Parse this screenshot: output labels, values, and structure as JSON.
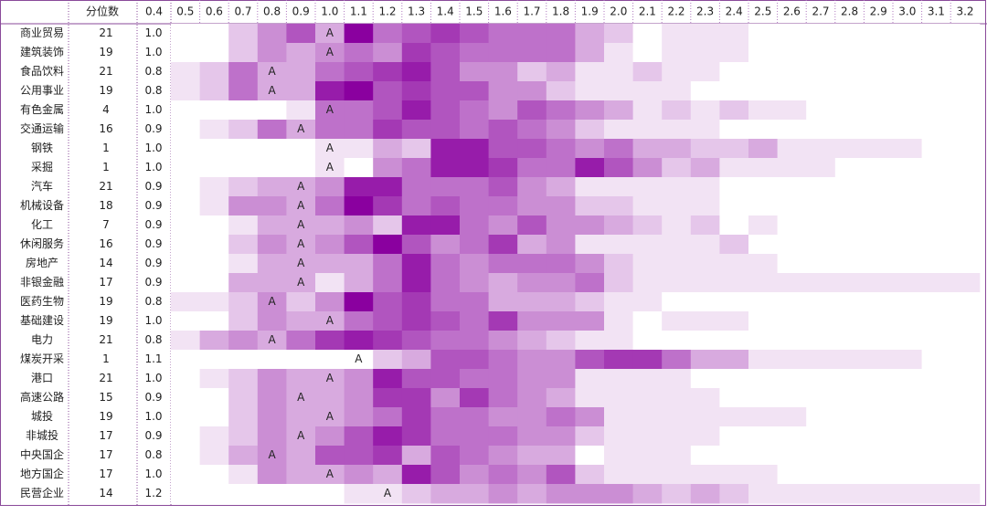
{
  "header": {
    "name": "",
    "count": "分位数",
    "columns": [
      "0.4",
      "0.5",
      "0.6",
      "0.7",
      "0.8",
      "0.9",
      "1.0",
      "1.1",
      "1.2",
      "1.3",
      "1.4",
      "1.5",
      "1.6",
      "1.7",
      "1.8",
      "1.9",
      "2.0",
      "2.1",
      "2.2",
      "2.3",
      "2.4",
      "2.5",
      "2.6",
      "2.7",
      "2.8",
      "2.9",
      "3.0",
      "3.1",
      "3.2"
    ]
  },
  "color_scale": {
    "range": [
      0,
      9
    ],
    "low": "#ffffff",
    "high": "#8a009f"
  },
  "marker": "A",
  "rows": [
    {
      "name": "商业贸易",
      "count": "21",
      "value": "1.0",
      "cells": [
        0,
        0,
        2,
        4,
        6,
        3,
        9,
        5,
        6,
        7,
        6,
        5,
        5,
        5,
        3,
        2,
        0,
        1,
        1,
        1,
        0,
        0,
        0,
        0,
        0,
        0,
        0,
        0
      ]
    },
    {
      "name": "建筑装饰",
      "count": "19",
      "value": "1.0",
      "cells": [
        0,
        0,
        2,
        4,
        3,
        4,
        5,
        4,
        7,
        6,
        5,
        5,
        5,
        5,
        3,
        1,
        0,
        1,
        1,
        1,
        0,
        0,
        0,
        0,
        0,
        0,
        0,
        0
      ]
    },
    {
      "name": "食品饮料",
      "count": "21",
      "value": "0.8",
      "cells": [
        1,
        2,
        5,
        3,
        3,
        5,
        6,
        7,
        8,
        6,
        4,
        4,
        2,
        3,
        1,
        1,
        2,
        1,
        1,
        0,
        0,
        0,
        0,
        0,
        0,
        0,
        0,
        0
      ]
    },
    {
      "name": "公用事业",
      "count": "19",
      "value": "0.8",
      "cells": [
        1,
        2,
        5,
        3,
        3,
        8,
        9,
        6,
        7,
        6,
        6,
        4,
        4,
        2,
        1,
        1,
        1,
        1,
        0,
        0,
        0,
        0,
        0,
        0,
        0,
        0,
        0,
        0
      ]
    },
    {
      "name": "有色金属",
      "count": "4",
      "value": "1.0",
      "cells": [
        0,
        0,
        0,
        0,
        1,
        5,
        5,
        6,
        8,
        6,
        5,
        4,
        6,
        5,
        4,
        3,
        1,
        2,
        1,
        2,
        1,
        1,
        0,
        0,
        0,
        0,
        0,
        0
      ]
    },
    {
      "name": "交通运输",
      "count": "16",
      "value": "0.9",
      "cells": [
        0,
        1,
        2,
        5,
        3,
        5,
        5,
        7,
        6,
        6,
        5,
        6,
        5,
        4,
        2,
        1,
        1,
        1,
        1,
        0,
        0,
        0,
        0,
        0,
        0,
        0,
        0,
        0
      ]
    },
    {
      "name": "钢铁",
      "count": "1",
      "value": "1.0",
      "cells": [
        0,
        0,
        0,
        0,
        0,
        1,
        1,
        3,
        2,
        8,
        8,
        6,
        6,
        5,
        4,
        5,
        3,
        3,
        2,
        2,
        3,
        1,
        1,
        1,
        1,
        1,
        0,
        0
      ]
    },
    {
      "name": "采掘",
      "count": "1",
      "value": "1.0",
      "cells": [
        0,
        0,
        0,
        0,
        0,
        1,
        0,
        4,
        5,
        8,
        8,
        7,
        5,
        5,
        8,
        6,
        4,
        2,
        3,
        1,
        1,
        1,
        1,
        0,
        0,
        0,
        0,
        0
      ]
    },
    {
      "name": "汽车",
      "count": "21",
      "value": "0.9",
      "cells": [
        0,
        1,
        2,
        3,
        3,
        4,
        8,
        8,
        5,
        5,
        5,
        6,
        4,
        3,
        1,
        1,
        1,
        1,
        1,
        0,
        0,
        0,
        0,
        0,
        0,
        0,
        0,
        0
      ]
    },
    {
      "name": "机械设备",
      "count": "18",
      "value": "0.9",
      "cells": [
        0,
        1,
        4,
        4,
        3,
        5,
        9,
        7,
        5,
        6,
        5,
        5,
        4,
        4,
        2,
        2,
        1,
        1,
        1,
        0,
        0,
        0,
        0,
        0,
        0,
        0,
        0,
        0
      ]
    },
    {
      "name": "化工",
      "count": "7",
      "value": "0.9",
      "cells": [
        0,
        0,
        1,
        3,
        3,
        3,
        4,
        2,
        8,
        8,
        5,
        4,
        6,
        4,
        4,
        3,
        2,
        1,
        2,
        0,
        1,
        0,
        0,
        0,
        0,
        0,
        0,
        0
      ]
    },
    {
      "name": "休闲服务",
      "count": "16",
      "value": "0.9",
      "cells": [
        0,
        0,
        2,
        4,
        3,
        4,
        6,
        9,
        6,
        4,
        5,
        7,
        3,
        4,
        1,
        1,
        1,
        1,
        1,
        2,
        0,
        0,
        0,
        0,
        0,
        0,
        0,
        0
      ]
    },
    {
      "name": "房地产",
      "count": "14",
      "value": "0.9",
      "cells": [
        0,
        0,
        1,
        3,
        3,
        3,
        3,
        5,
        8,
        5,
        4,
        5,
        5,
        5,
        4,
        2,
        1,
        1,
        1,
        1,
        1,
        0,
        0,
        0,
        0,
        0,
        0,
        0
      ]
    },
    {
      "name": "非银金融",
      "count": "17",
      "value": "0.9",
      "cells": [
        0,
        0,
        3,
        3,
        3,
        1,
        3,
        5,
        8,
        5,
        4,
        3,
        4,
        4,
        5,
        2,
        1,
        1,
        1,
        1,
        1,
        1,
        1,
        1,
        1,
        1,
        1,
        1
      ]
    },
    {
      "name": "医药生物",
      "count": "19",
      "value": "0.8",
      "cells": [
        1,
        1,
        2,
        4,
        2,
        4,
        9,
        6,
        7,
        5,
        5,
        3,
        3,
        3,
        2,
        1,
        1,
        0,
        0,
        0,
        0,
        0,
        0,
        0,
        0,
        0,
        0,
        0
      ]
    },
    {
      "name": "基础建设",
      "count": "19",
      "value": "1.0",
      "cells": [
        0,
        0,
        2,
        4,
        3,
        3,
        5,
        6,
        7,
        6,
        5,
        7,
        4,
        4,
        4,
        1,
        0,
        1,
        1,
        1,
        0,
        0,
        0,
        0,
        0,
        0,
        0,
        0
      ]
    },
    {
      "name": "电力",
      "count": "21",
      "value": "0.8",
      "cells": [
        1,
        3,
        4,
        3,
        5,
        7,
        8,
        7,
        6,
        5,
        5,
        4,
        3,
        2,
        1,
        1,
        0,
        0,
        0,
        0,
        0,
        0,
        0,
        0,
        0,
        0,
        0,
        0
      ]
    },
    {
      "name": "煤炭开采",
      "count": "1",
      "value": "1.1",
      "cells": [
        0,
        0,
        0,
        0,
        0,
        0,
        0,
        2,
        3,
        6,
        6,
        5,
        4,
        4,
        6,
        7,
        7,
        5,
        3,
        3,
        1,
        1,
        1,
        1,
        1,
        1,
        0,
        0
      ]
    },
    {
      "name": "港口",
      "count": "21",
      "value": "1.0",
      "cells": [
        0,
        1,
        2,
        4,
        3,
        3,
        4,
        8,
        6,
        6,
        5,
        5,
        4,
        4,
        1,
        1,
        1,
        1,
        0,
        0,
        0,
        0,
        0,
        0,
        0,
        0,
        0,
        0
      ]
    },
    {
      "name": "高速公路",
      "count": "15",
      "value": "0.9",
      "cells": [
        0,
        0,
        2,
        4,
        3,
        3,
        4,
        7,
        7,
        4,
        7,
        5,
        4,
        3,
        1,
        1,
        1,
        1,
        1,
        0,
        0,
        0,
        0,
        0,
        0,
        0,
        0,
        0
      ]
    },
    {
      "name": "城投",
      "count": "19",
      "value": "1.0",
      "cells": [
        0,
        0,
        2,
        4,
        3,
        3,
        4,
        5,
        7,
        5,
        5,
        4,
        4,
        5,
        4,
        1,
        1,
        1,
        1,
        1,
        1,
        1,
        0,
        0,
        0,
        0,
        0,
        0
      ]
    },
    {
      "name": "非城投",
      "count": "17",
      "value": "0.9",
      "cells": [
        0,
        1,
        2,
        4,
        3,
        4,
        6,
        8,
        7,
        5,
        5,
        5,
        4,
        4,
        2,
        1,
        1,
        1,
        1,
        0,
        0,
        0,
        0,
        0,
        0,
        0,
        0,
        0
      ]
    },
    {
      "name": "中央国企",
      "count": "17",
      "value": "0.8",
      "cells": [
        0,
        1,
        3,
        4,
        3,
        6,
        6,
        7,
        3,
        6,
        5,
        4,
        3,
        3,
        0,
        1,
        1,
        1,
        0,
        0,
        0,
        0,
        0,
        0,
        0,
        0,
        0,
        0
      ]
    },
    {
      "name": "地方国企",
      "count": "17",
      "value": "1.0",
      "cells": [
        0,
        0,
        1,
        4,
        3,
        3,
        4,
        3,
        8,
        6,
        4,
        5,
        4,
        6,
        2,
        1,
        1,
        1,
        1,
        1,
        1,
        0,
        0,
        0,
        0,
        0,
        0,
        0
      ]
    },
    {
      "name": "民营企业",
      "count": "14",
      "value": "1.2",
      "cells": [
        0,
        0,
        0,
        0,
        0,
        0,
        1,
        1,
        2,
        3,
        3,
        4,
        3,
        4,
        4,
        4,
        3,
        2,
        3,
        2,
        1,
        1,
        1,
        1,
        1,
        1,
        1,
        1
      ]
    }
  ]
}
